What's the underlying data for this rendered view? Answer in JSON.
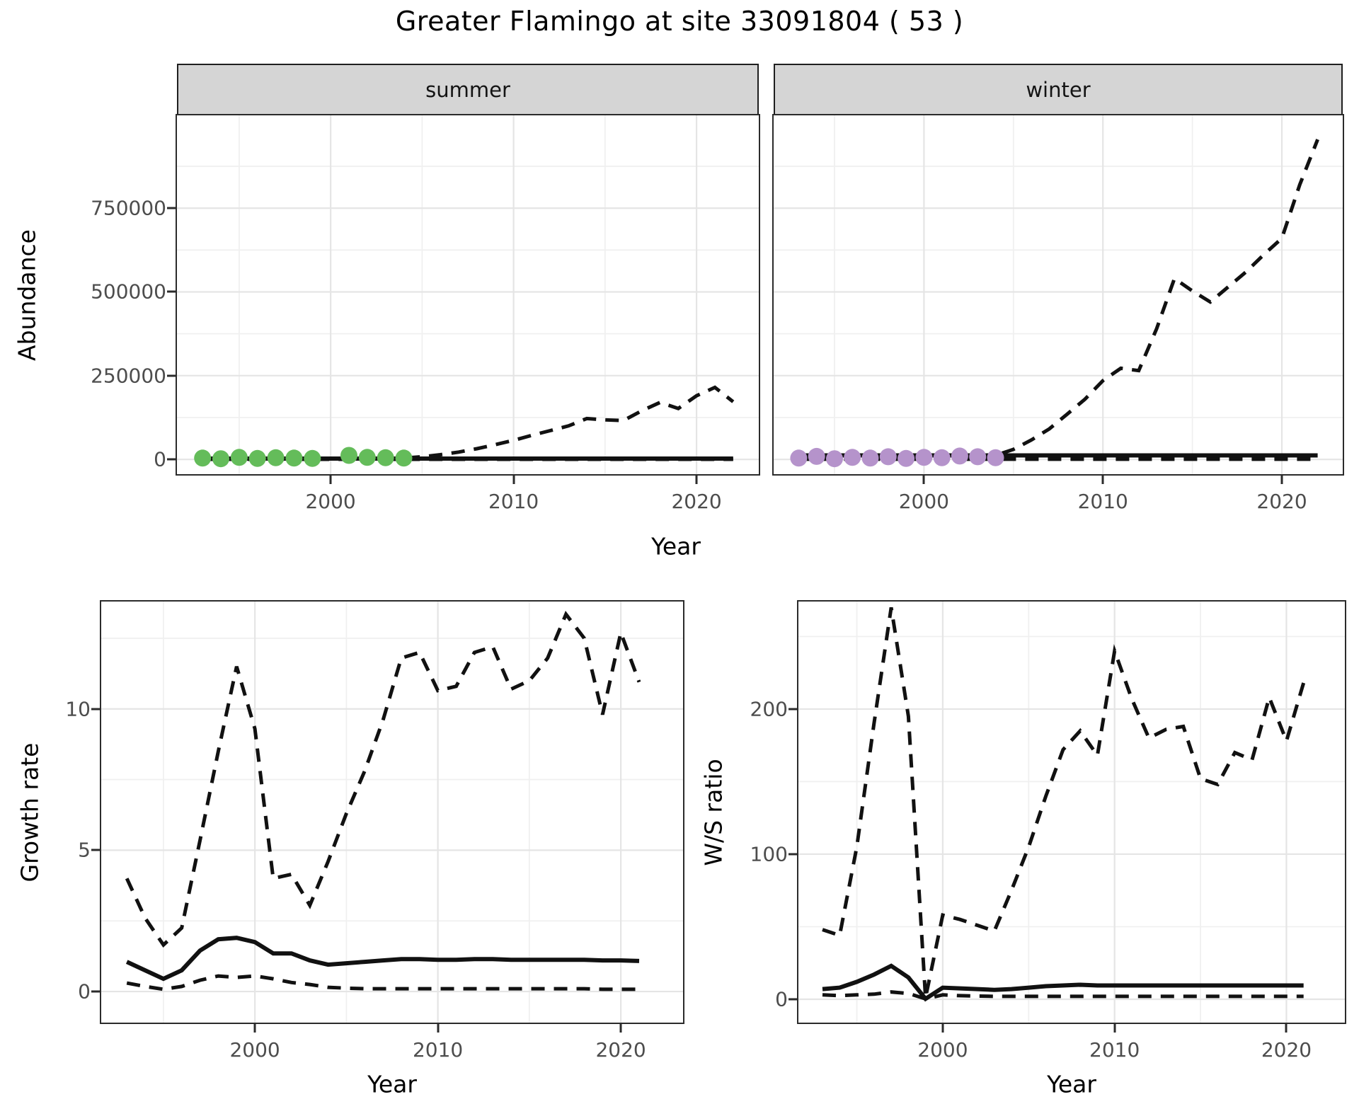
{
  "title": "Greater Flamingo at site 33091804 ( 53 )",
  "colors": {
    "summer_point": "#64BC5A",
    "winter_point": "#B593CB",
    "line": "#111111",
    "grid_major": "#E5E5E5",
    "grid_minor": "#F0F0F0",
    "strip_bg": "#D5D5D5",
    "panel_border": "#2b2b2b",
    "tick_text": "#4D4D4D"
  },
  "chart_data": [
    {
      "id": "summer",
      "type": "line",
      "facet_label": "summer",
      "title": "Greater Flamingo at site 33091804 ( 53 )",
      "xlabel": "Year",
      "ylabel": "Abundance",
      "x_domain": [
        1991.6,
        2023.4
      ],
      "y_domain": [
        -44000,
        1027000
      ],
      "x_ticks": [
        {
          "value": 2000,
          "label": "2000"
        },
        {
          "value": 2010,
          "label": "2010"
        },
        {
          "value": 2020,
          "label": "2020"
        }
      ],
      "x_minor": [
        1995,
        2005,
        2015
      ],
      "y_ticks": [
        {
          "value": 0,
          "label": "0"
        },
        {
          "value": 250000,
          "label": "250000"
        },
        {
          "value": 500000,
          "label": "500000"
        },
        {
          "value": 750000,
          "label": "750000"
        }
      ],
      "y_minor": [
        125000,
        375000,
        625000,
        875000
      ],
      "show_y_tick_labels": true,
      "series": [
        {
          "name": "estimate",
          "style": "solid",
          "x": [
            1993,
            2022
          ],
          "y": [
            2500,
            2500
          ]
        },
        {
          "name": "upper_ci",
          "style": "dashed",
          "x": [
            1993,
            1994,
            1995,
            1996,
            1997,
            1998,
            1999,
            2000,
            2001,
            2002,
            2003,
            2004,
            2005,
            2006,
            2007,
            2008,
            2009,
            2010,
            2011,
            2012,
            2013,
            2014,
            2015,
            2016,
            2017,
            2018,
            2019,
            2020,
            2021,
            2022
          ],
          "y": [
            2500,
            2500,
            2500,
            2500,
            2500,
            2500,
            2500,
            2500,
            2500,
            2500,
            2500,
            4000,
            8000,
            14000,
            22000,
            32000,
            44000,
            57000,
            72000,
            86000,
            100000,
            122000,
            118000,
            116000,
            145000,
            170000,
            152000,
            190000,
            215000,
            172000
          ]
        },
        {
          "name": "lower_ci",
          "style": "dashed",
          "x": [
            1993,
            2022
          ],
          "y": [
            400,
            400
          ]
        }
      ],
      "points": {
        "name": "observed_counts",
        "color": "#64BC5A",
        "x": [
          1993,
          1994,
          1995,
          1996,
          1997,
          1998,
          1999,
          2001,
          2002,
          2003,
          2004
        ],
        "y": [
          4000,
          2000,
          6000,
          3000,
          5000,
          4000,
          3000,
          12000,
          6000,
          5000,
          4000
        ]
      }
    },
    {
      "id": "winter",
      "type": "line",
      "facet_label": "winter",
      "xlabel": "Year",
      "ylabel": "Abundance",
      "x_domain": [
        1991.6,
        2023.4
      ],
      "y_domain": [
        -44000,
        1027000
      ],
      "x_ticks": [
        {
          "value": 2000,
          "label": "2000"
        },
        {
          "value": 2010,
          "label": "2010"
        },
        {
          "value": 2020,
          "label": "2020"
        }
      ],
      "x_minor": [
        1995,
        2005,
        2015
      ],
      "y_ticks": [
        {
          "value": 0,
          "label": "0"
        },
        {
          "value": 250000,
          "label": "250000"
        },
        {
          "value": 500000,
          "label": "500000"
        },
        {
          "value": 750000,
          "label": "750000"
        }
      ],
      "y_minor": [
        125000,
        375000,
        625000,
        875000
      ],
      "show_y_tick_labels": false,
      "series": [
        {
          "name": "estimate",
          "style": "solid",
          "x": [
            1993,
            2022
          ],
          "y": [
            12000,
            12000
          ]
        },
        {
          "name": "upper_ci",
          "style": "dashed",
          "x": [
            1993,
            1994,
            1995,
            1996,
            1997,
            1998,
            1999,
            2000,
            2001,
            2002,
            2003,
            2004,
            2005,
            2006,
            2007,
            2008,
            2009,
            2010,
            2011,
            2012,
            2013,
            2014,
            2015,
            2016,
            2017,
            2018,
            2019,
            2020,
            2021,
            2022
          ],
          "y": [
            3000,
            3000,
            3000,
            3000,
            3000,
            3000,
            3000,
            3000,
            3000,
            3000,
            5000,
            12000,
            30000,
            58000,
            91000,
            135000,
            180000,
            235000,
            272000,
            265000,
            390000,
            540000,
            503000,
            470000,
            515000,
            560000,
            612000,
            660000,
            820000,
            955000
          ]
        },
        {
          "name": "lower_ci",
          "style": "dashed",
          "x": [
            1993,
            2022
          ],
          "y": [
            500,
            500
          ]
        }
      ],
      "points": {
        "name": "observed_counts",
        "color": "#B593CB",
        "x": [
          1993,
          1994,
          1995,
          1996,
          1997,
          1998,
          1999,
          2000,
          2001,
          2002,
          2003,
          2004
        ],
        "y": [
          4000,
          9000,
          2000,
          6000,
          4000,
          8000,
          3000,
          6000,
          5000,
          10000,
          8000,
          5000
        ]
      }
    },
    {
      "id": "growth",
      "type": "line",
      "facet_label": "",
      "xlabel": "Year",
      "ylabel": "Growth rate",
      "x_domain": [
        1991.6,
        2023.4
      ],
      "y_domain": [
        -1.1,
        13.8
      ],
      "x_ticks": [
        {
          "value": 2000,
          "label": "2000"
        },
        {
          "value": 2010,
          "label": "2010"
        },
        {
          "value": 2020,
          "label": "2020"
        }
      ],
      "x_minor": [
        1995,
        2005,
        2015
      ],
      "y_ticks": [
        {
          "value": 0,
          "label": "0"
        },
        {
          "value": 5,
          "label": "5"
        },
        {
          "value": 10,
          "label": "10"
        }
      ],
      "y_minor": [
        2.5,
        7.5,
        12.5
      ],
      "show_y_tick_labels": true,
      "series": [
        {
          "name": "estimate",
          "style": "solid",
          "x": [
            1993,
            1994,
            1995,
            1996,
            1997,
            1998,
            1999,
            2000,
            2001,
            2002,
            2003,
            2004,
            2005,
            2006,
            2007,
            2008,
            2009,
            2010,
            2011,
            2012,
            2013,
            2014,
            2015,
            2016,
            2017,
            2018,
            2019,
            2020,
            2021
          ],
          "y": [
            1.05,
            0.75,
            0.45,
            0.75,
            1.45,
            1.85,
            1.9,
            1.75,
            1.35,
            1.35,
            1.1,
            0.95,
            1.0,
            1.05,
            1.1,
            1.15,
            1.15,
            1.12,
            1.12,
            1.15,
            1.15,
            1.12,
            1.12,
            1.12,
            1.12,
            1.12,
            1.1,
            1.1,
            1.08
          ]
        },
        {
          "name": "upper_ci",
          "style": "dashed",
          "x": [
            1993,
            1994,
            1995,
            1996,
            1997,
            1998,
            1999,
            2000,
            2001,
            2002,
            2003,
            2004,
            2005,
            2006,
            2007,
            2008,
            2009,
            2010,
            2011,
            2012,
            2013,
            2014,
            2015,
            2016,
            2017,
            2018,
            2019,
            2020,
            2021
          ],
          "y": [
            4.0,
            2.6,
            1.65,
            2.25,
            5.35,
            8.5,
            11.5,
            9.3,
            4.0,
            4.15,
            3.05,
            4.6,
            6.3,
            7.8,
            9.6,
            11.8,
            12.0,
            10.65,
            10.8,
            12.0,
            12.2,
            10.7,
            11.0,
            11.8,
            13.35,
            12.5,
            9.8,
            12.7,
            10.95
          ]
        },
        {
          "name": "lower_ci",
          "style": "dashed",
          "x": [
            1993,
            1994,
            1995,
            1996,
            1997,
            1998,
            1999,
            2000,
            2001,
            2002,
            2003,
            2004,
            2005,
            2006,
            2007,
            2008,
            2009,
            2010,
            2011,
            2012,
            2013,
            2014,
            2015,
            2016,
            2017,
            2018,
            2019,
            2020,
            2021
          ],
          "y": [
            0.3,
            0.18,
            0.08,
            0.18,
            0.4,
            0.55,
            0.5,
            0.55,
            0.45,
            0.32,
            0.25,
            0.15,
            0.12,
            0.1,
            0.1,
            0.1,
            0.1,
            0.1,
            0.1,
            0.1,
            0.1,
            0.1,
            0.1,
            0.1,
            0.1,
            0.1,
            0.08,
            0.08,
            0.08
          ]
        }
      ],
      "points": null
    },
    {
      "id": "ws",
      "type": "line",
      "facet_label": "",
      "xlabel": "Year",
      "ylabel": "W/S ratio",
      "x_domain": [
        1991.6,
        2023.4
      ],
      "y_domain": [
        -16.1,
        274.1
      ],
      "x_ticks": [
        {
          "value": 2000,
          "label": "2000"
        },
        {
          "value": 2010,
          "label": "2010"
        },
        {
          "value": 2020,
          "label": "2020"
        }
      ],
      "x_minor": [
        1995,
        2005,
        2015
      ],
      "y_ticks": [
        {
          "value": 0,
          "label": "0"
        },
        {
          "value": 100,
          "label": "100"
        },
        {
          "value": 200,
          "label": "200"
        }
      ],
      "y_minor": [
        50,
        150,
        250
      ],
      "show_y_tick_labels": true,
      "series": [
        {
          "name": "estimate",
          "style": "solid",
          "x": [
            1993,
            1994,
            1995,
            1996,
            1997,
            1998,
            1999,
            2000,
            2001,
            2002,
            2003,
            2004,
            2005,
            2006,
            2007,
            2008,
            2009,
            2010,
            2011,
            2012,
            2013,
            2014,
            2015,
            2016,
            2017,
            2018,
            2019,
            2020,
            2021
          ],
          "y": [
            7,
            8,
            12,
            17,
            23,
            15,
            0.3,
            8,
            7.5,
            7,
            6.5,
            7,
            8,
            9,
            9.5,
            10,
            9.5,
            9.5,
            9.5,
            9.5,
            9.5,
            9.5,
            9.5,
            9.5,
            9.5,
            9.5,
            9.5,
            9.5,
            9.5
          ]
        },
        {
          "name": "upper_ci",
          "style": "dashed",
          "x": [
            1993,
            1994,
            1995,
            1996,
            1997,
            1998,
            1999,
            2000,
            2001,
            2002,
            2003,
            2004,
            2005,
            2006,
            2007,
            2008,
            2009,
            2010,
            2011,
            2012,
            2013,
            2014,
            2015,
            2016,
            2017,
            2018,
            2019,
            2020,
            2021
          ],
          "y": [
            48,
            44,
            105,
            190,
            270,
            195,
            1,
            58,
            55,
            51,
            47,
            75,
            105,
            140,
            172,
            185,
            168,
            240,
            207,
            180,
            186,
            188,
            152,
            148,
            170,
            165,
            208,
            178,
            218
          ]
        },
        {
          "name": "lower_ci",
          "style": "dashed",
          "x": [
            1993,
            1994,
            1995,
            1996,
            1997,
            1998,
            1999,
            2000,
            2001,
            2002,
            2003,
            2004,
            2005,
            2006,
            2007,
            2008,
            2009,
            2010,
            2011,
            2012,
            2013,
            2014,
            2015,
            2016,
            2017,
            2018,
            2019,
            2020,
            2021
          ],
          "y": [
            3,
            2.5,
            3,
            3.5,
            5,
            4,
            0.3,
            3,
            2.5,
            2.2,
            2,
            2,
            2,
            2,
            2,
            2,
            2,
            2,
            2,
            2,
            2,
            2,
            2,
            2,
            2,
            2,
            2,
            2,
            2
          ]
        }
      ],
      "points": null
    }
  ]
}
